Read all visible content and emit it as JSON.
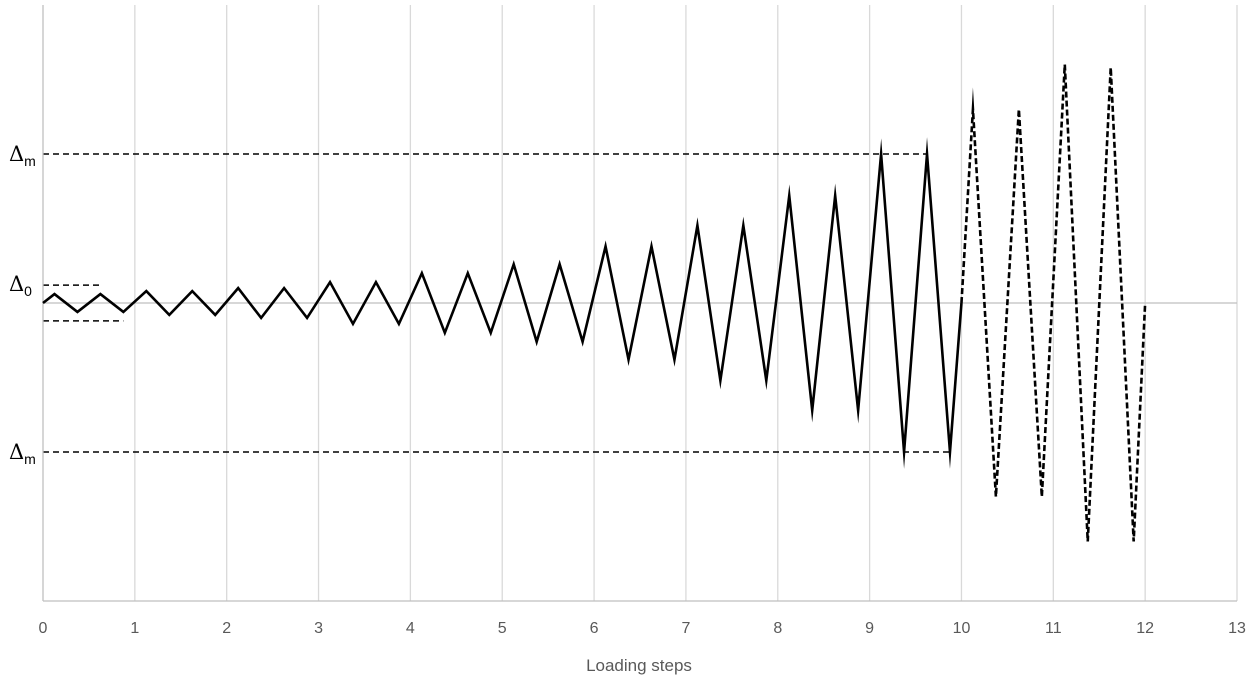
{
  "chart_data": {
    "type": "line",
    "xlabel": "Loading steps",
    "xlim": [
      0,
      13
    ],
    "x_ticks": [
      "0",
      "1",
      "2",
      "3",
      "4",
      "5",
      "6",
      "7",
      "8",
      "9",
      "10",
      "11",
      "12",
      "13"
    ],
    "ylim": [
      -10,
      10
    ],
    "grid": "vertical",
    "reference_levels": {
      "delta_0": 0.6,
      "delta_m": 5
    },
    "annotations": [
      {
        "id": "delta-m-upper",
        "symbol": "Δ",
        "subscript": "m",
        "level": 5
      },
      {
        "id": "delta-0",
        "symbol": "Δ",
        "subscript": "0",
        "level": 0.6
      },
      {
        "id": "delta-m-lower",
        "symbol": "Δ",
        "subscript": "m",
        "level": -5
      }
    ],
    "series": [
      {
        "style": "solid",
        "x": [
          0,
          0.125,
          0.375,
          0.625,
          0.875,
          1.125,
          1.375,
          1.625,
          1.875,
          2.125,
          2.375,
          2.625,
          2.875,
          3.125,
          3.375,
          3.625,
          3.875,
          4.125,
          4.375,
          4.625,
          4.875,
          5.125,
          5.375,
          5.625,
          5.875,
          6.125,
          6.375,
          6.625,
          6.875,
          7.125,
          7.375,
          7.625,
          7.875,
          8.125,
          8.375,
          8.625,
          8.875,
          9.125,
          9.375,
          9.625,
          9.875,
          10
        ],
        "y": [
          0,
          0.3,
          -0.3,
          0.3,
          -0.3,
          0.4,
          -0.4,
          0.4,
          -0.4,
          0.5,
          -0.5,
          0.5,
          -0.5,
          0.7,
          -0.7,
          0.7,
          -0.7,
          1.0,
          -1.0,
          1.0,
          -1.0,
          1.3,
          -1.3,
          1.3,
          -1.3,
          1.9,
          -1.9,
          1.9,
          -1.9,
          2.6,
          -2.6,
          2.6,
          -2.6,
          3.6,
          -3.6,
          3.6,
          -3.6,
          5.0,
          -5.0,
          5.0,
          -5.0,
          0
        ]
      },
      {
        "style": "dashed",
        "x": [
          10,
          10.125,
          10.375,
          10.625,
          10.875,
          11.125,
          11.375,
          11.625,
          11.875,
          12
        ],
        "y": [
          0,
          6.5,
          -6.5,
          6.5,
          -6.5,
          8.0,
          -8.0,
          7.9,
          -8.0,
          0
        ]
      }
    ]
  }
}
